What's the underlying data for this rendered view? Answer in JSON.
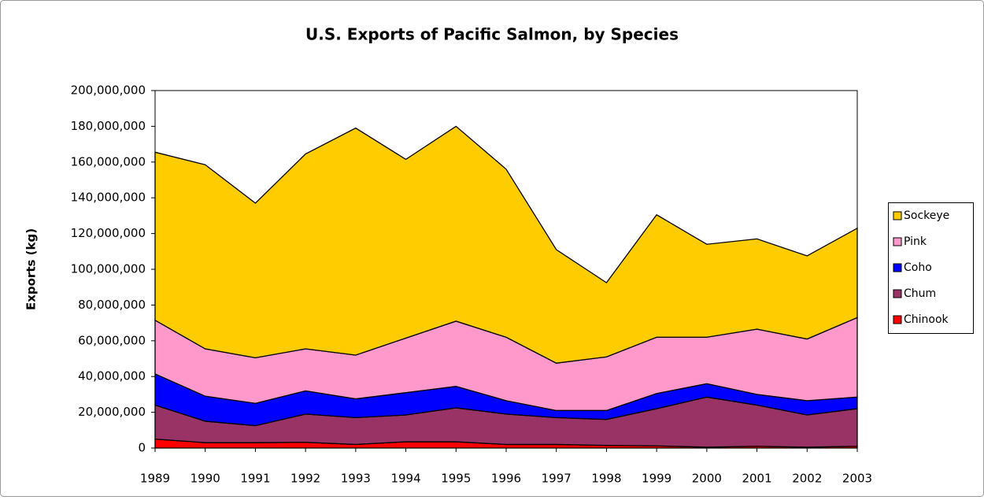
{
  "chart_data": {
    "type": "stacked_area",
    "title": "U.S. Exports of Pacific Salmon, by Species",
    "y_label": "Exports (kg)",
    "categories": [
      "1989",
      "1990",
      "1991",
      "1992",
      "1993",
      "1994",
      "1995",
      "1996",
      "1997",
      "1998",
      "1999",
      "2000",
      "2001",
      "2002",
      "2003"
    ],
    "series": [
      {
        "name": "Chinook",
        "color": "#ff0000",
        "values": [
          5000000,
          3000000,
          3000000,
          3200000,
          2000000,
          3500000,
          3500000,
          2000000,
          2000000,
          1500000,
          1200000,
          500000,
          1000000,
          500000,
          1000000
        ]
      },
      {
        "name": "Chum",
        "color": "#993366",
        "values": [
          19000000,
          12000000,
          9500000,
          15800000,
          15000000,
          15000000,
          19000000,
          17000000,
          15000000,
          14500000,
          20800000,
          28000000,
          23000000,
          18000000,
          21000000
        ]
      },
      {
        "name": "Coho",
        "color": "#0000ff",
        "values": [
          17500000,
          14000000,
          12500000,
          13000000,
          10500000,
          12500000,
          12000000,
          7500000,
          4000000,
          5000000,
          8500000,
          7500000,
          6000000,
          8000000,
          6500000
        ]
      },
      {
        "name": "Pink",
        "color": "#ff99cc",
        "values": [
          30000000,
          26500000,
          25500000,
          23500000,
          24500000,
          30500000,
          36500000,
          35500000,
          26500000,
          30000000,
          31500000,
          26000000,
          36500000,
          34500000,
          44500000
        ]
      },
      {
        "name": "Sockeye",
        "color": "#ffcc00",
        "values": [
          94000000,
          103000000,
          86500000,
          109000000,
          127000000,
          100000000,
          109000000,
          94000000,
          63500000,
          41500000,
          68500000,
          52000000,
          50500000,
          46500000,
          50000000
        ]
      }
    ],
    "ylim": [
      0,
      200000000
    ],
    "yticks": [
      0,
      {
        "value": 20000000,
        "label": "20,000,000"
      },
      {
        "value": 40000000,
        "label": "40,000,000"
      },
      {
        "value": 60000000,
        "label": "60,000,000"
      },
      {
        "value": 80000000,
        "label": "80,000,000"
      },
      {
        "value": 100000000,
        "label": "100,000,000"
      },
      {
        "value": 120000000,
        "label": "120,000,000"
      },
      {
        "value": 140000000,
        "label": "140,000,000"
      },
      {
        "value": 160000000,
        "label": "160,000,000"
      },
      {
        "value": 180000000,
        "label": "180,000,000"
      },
      {
        "value": 200000000,
        "label": "200,000,000"
      }
    ],
    "legend": "right"
  }
}
